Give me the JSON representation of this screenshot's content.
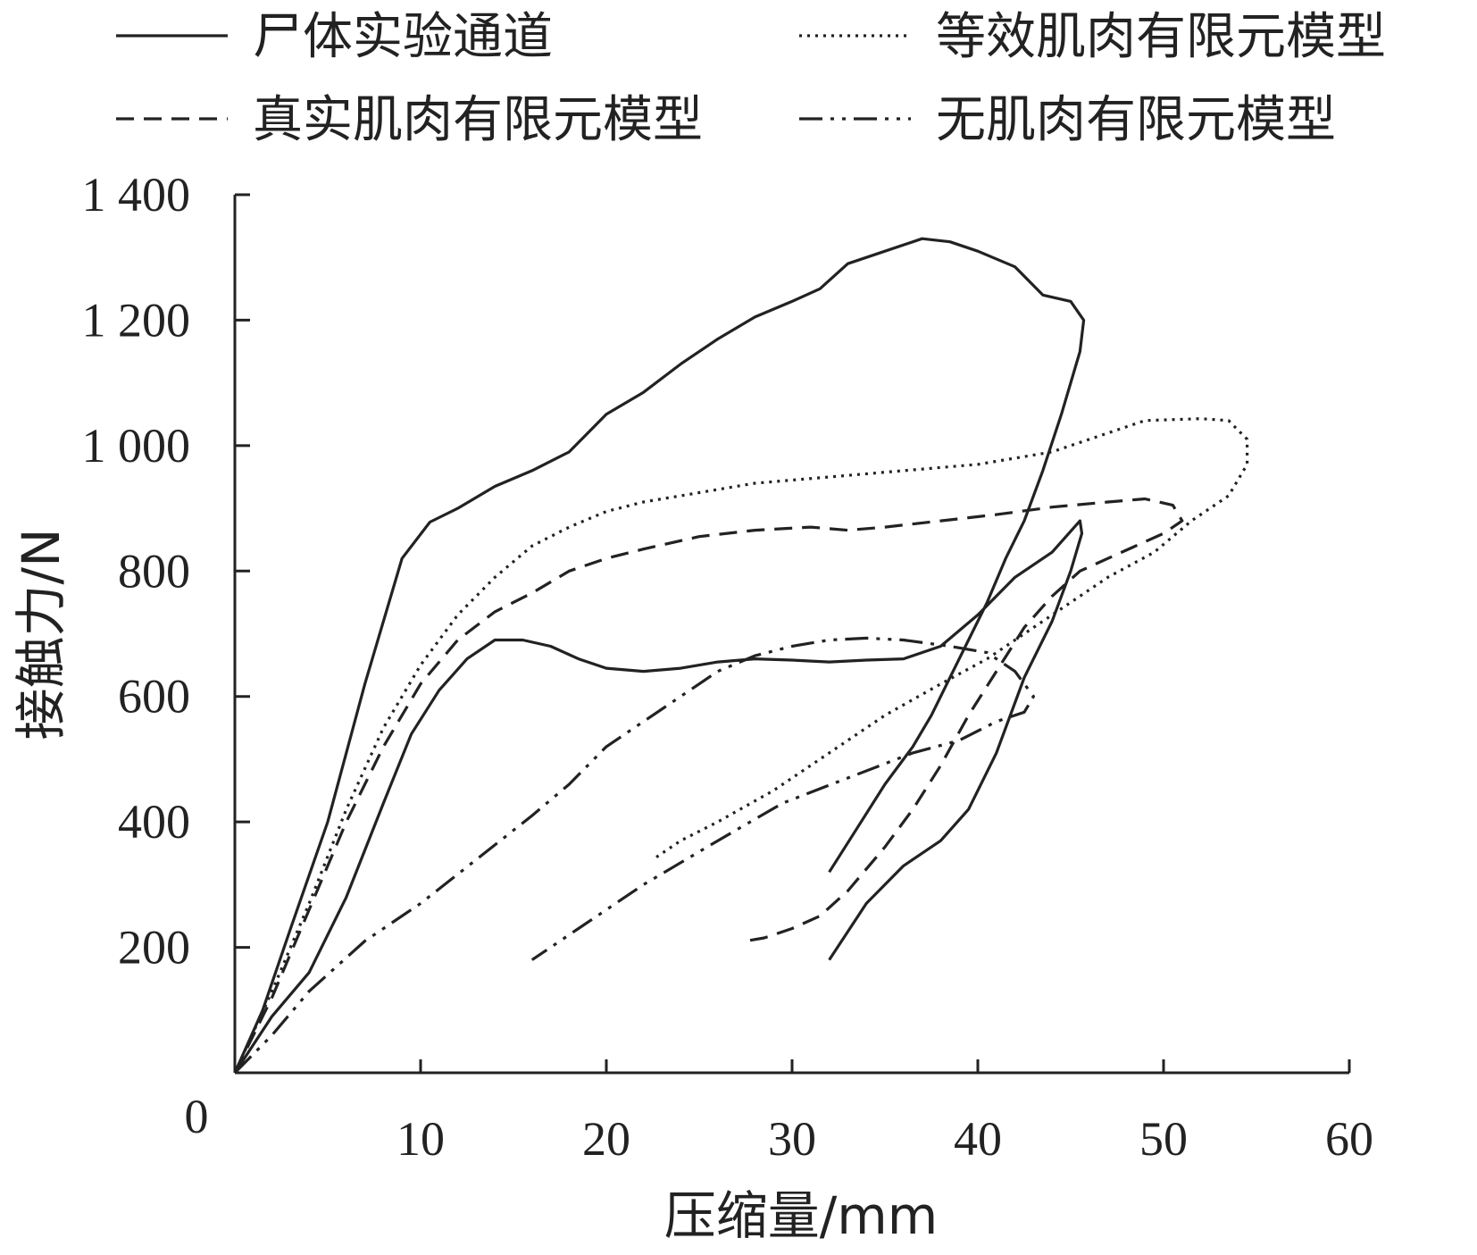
{
  "chart_data": {
    "type": "line",
    "title": "",
    "xlabel": "压缩量/mm",
    "ylabel": "接触力/N",
    "xlim": [
      0,
      60
    ],
    "ylim": [
      0,
      1400
    ],
    "x_ticks": [
      {
        "value": 0,
        "label": "0"
      },
      {
        "value": 10,
        "label": "10"
      },
      {
        "value": 20,
        "label": "20"
      },
      {
        "value": 30,
        "label": "30"
      },
      {
        "value": 40,
        "label": "40"
      },
      {
        "value": 50,
        "label": "50"
      },
      {
        "value": 60,
        "label": "60"
      }
    ],
    "y_ticks": [
      {
        "value": 200,
        "label": "200"
      },
      {
        "value": 400,
        "label": "400"
      },
      {
        "value": 600,
        "label": "600"
      },
      {
        "value": 800,
        "label": "800"
      },
      {
        "value": 1000,
        "label": "1 000"
      },
      {
        "value": 1200,
        "label": "1 200"
      },
      {
        "value": 1400,
        "label": "1 400"
      }
    ],
    "origin_label": "0",
    "legend_position": "top",
    "grid": false,
    "series": [
      {
        "name": "尸体实验通道",
        "dash": "solid",
        "points": [
          [
            0,
            0
          ],
          [
            1.5,
            100
          ],
          [
            3,
            230
          ],
          [
            5,
            400
          ],
          [
            7,
            620
          ],
          [
            9,
            820
          ],
          [
            10.5,
            878
          ],
          [
            12,
            900
          ],
          [
            14,
            935
          ],
          [
            16,
            960
          ],
          [
            18,
            990
          ],
          [
            20,
            1050
          ],
          [
            22,
            1085
          ],
          [
            24,
            1130
          ],
          [
            26,
            1170
          ],
          [
            28,
            1205
          ],
          [
            30,
            1230
          ],
          [
            31.5,
            1250
          ],
          [
            33,
            1290
          ],
          [
            35,
            1310
          ],
          [
            37,
            1330
          ],
          [
            38.5,
            1325
          ],
          [
            40,
            1310
          ],
          [
            42,
            1285
          ],
          [
            43.5,
            1240
          ],
          [
            45,
            1230
          ],
          [
            45.7,
            1200
          ],
          [
            45.5,
            1150
          ],
          [
            44.5,
            1050
          ],
          [
            43.5,
            960
          ],
          [
            42.5,
            880
          ],
          [
            41.5,
            820
          ],
          [
            40.5,
            750
          ],
          [
            39.5,
            690
          ],
          [
            38.5,
            630
          ],
          [
            37.5,
            570
          ],
          [
            36.5,
            520
          ],
          [
            35,
            460
          ],
          [
            33.5,
            390
          ],
          [
            32,
            320
          ],
          null,
          [
            0,
            0
          ],
          [
            2,
            90
          ],
          [
            4,
            160
          ],
          [
            6,
            280
          ],
          [
            8,
            430
          ],
          [
            9.5,
            540
          ],
          [
            11,
            610
          ],
          [
            12.5,
            660
          ],
          [
            14,
            690
          ],
          [
            15.5,
            690
          ],
          [
            17,
            680
          ],
          [
            18.5,
            660
          ],
          [
            20,
            645
          ],
          [
            22,
            640
          ],
          [
            24,
            645
          ],
          [
            26,
            655
          ],
          [
            28,
            660
          ],
          [
            30,
            658
          ],
          [
            32,
            655
          ],
          [
            34,
            658
          ],
          [
            36,
            660
          ],
          [
            38,
            680
          ],
          [
            40,
            730
          ],
          [
            42,
            790
          ],
          [
            44,
            830
          ],
          [
            45.5,
            880
          ],
          [
            45.6,
            860
          ],
          [
            45,
            800
          ],
          [
            44,
            720
          ],
          [
            42.5,
            630
          ],
          [
            41,
            510
          ],
          [
            39.5,
            420
          ],
          [
            38,
            370
          ],
          [
            36,
            330
          ],
          [
            34,
            270
          ],
          [
            32,
            180
          ]
        ]
      },
      {
        "name": "等效肌肉有限元模型",
        "dash": "dotted",
        "points": [
          [
            0,
            0
          ],
          [
            2,
            130
          ],
          [
            4,
            270
          ],
          [
            6,
            420
          ],
          [
            8,
            550
          ],
          [
            10,
            650
          ],
          [
            12,
            730
          ],
          [
            14,
            790
          ],
          [
            16,
            840
          ],
          [
            18,
            870
          ],
          [
            20,
            895
          ],
          [
            22,
            910
          ],
          [
            25,
            925
          ],
          [
            28,
            940
          ],
          [
            32,
            950
          ],
          [
            36,
            960
          ],
          [
            40,
            970
          ],
          [
            44,
            990
          ],
          [
            47,
            1020
          ],
          [
            49,
            1040
          ],
          [
            52,
            1043
          ],
          [
            53.5,
            1040
          ],
          [
            54.5,
            1010
          ],
          [
            54.5,
            970
          ],
          [
            53.5,
            920
          ],
          [
            51.5,
            880
          ],
          [
            49.5,
            830
          ],
          [
            47,
            790
          ],
          [
            45,
            750
          ],
          [
            43,
            710
          ],
          [
            40.5,
            660
          ],
          [
            38,
            620
          ],
          [
            35,
            570
          ],
          [
            32,
            510
          ],
          [
            29,
            450
          ],
          [
            26,
            400
          ],
          [
            24,
            370
          ],
          [
            22.5,
            340
          ]
        ]
      },
      {
        "name": "真实肌肉有限元模型",
        "dash": "dashed",
        "points": [
          [
            0,
            0
          ],
          [
            2,
            120
          ],
          [
            4,
            260
          ],
          [
            6,
            400
          ],
          [
            8,
            520
          ],
          [
            10,
            620
          ],
          [
            12,
            690
          ],
          [
            14,
            735
          ],
          [
            16,
            765
          ],
          [
            18,
            800
          ],
          [
            20,
            820
          ],
          [
            22,
            835
          ],
          [
            25,
            855
          ],
          [
            28,
            865
          ],
          [
            31,
            870
          ],
          [
            33,
            865
          ],
          [
            35,
            870
          ],
          [
            38,
            880
          ],
          [
            41,
            890
          ],
          [
            44,
            902
          ],
          [
            47,
            910
          ],
          [
            49,
            915
          ],
          [
            50.5,
            905
          ],
          [
            51,
            880
          ],
          [
            50,
            860
          ],
          [
            48.5,
            840
          ],
          [
            47,
            820
          ],
          [
            45.5,
            800
          ],
          [
            44,
            760
          ],
          [
            42.5,
            710
          ],
          [
            41,
            640
          ],
          [
            39.5,
            570
          ],
          [
            38,
            490
          ],
          [
            36.5,
            420
          ],
          [
            35,
            360
          ],
          [
            33,
            290
          ],
          [
            31.5,
            250
          ],
          [
            30,
            230
          ],
          [
            28.5,
            215
          ],
          [
            27.5,
            210
          ]
        ]
      },
      {
        "name": "无肌肉有限元模型",
        "dash": "dashdotdot",
        "points": [
          [
            0,
            0
          ],
          [
            2,
            60
          ],
          [
            4,
            130
          ],
          [
            7,
            210
          ],
          [
            10,
            270
          ],
          [
            13,
            340
          ],
          [
            16,
            410
          ],
          [
            18,
            460
          ],
          [
            20,
            520
          ],
          [
            22,
            560
          ],
          [
            24,
            600
          ],
          [
            26,
            640
          ],
          [
            28,
            665
          ],
          [
            30,
            680
          ],
          [
            32,
            690
          ],
          [
            34,
            693
          ],
          [
            36,
            690
          ],
          [
            38.5,
            680
          ],
          [
            40.5,
            670
          ],
          [
            42,
            640
          ],
          [
            43,
            600
          ],
          [
            42.5,
            575
          ],
          [
            41,
            560
          ],
          [
            39,
            530
          ],
          [
            36.5,
            510
          ],
          [
            33,
            470
          ],
          [
            29.5,
            430
          ],
          [
            26,
            370
          ],
          [
            22,
            300
          ],
          [
            18.5,
            230
          ],
          [
            16,
            180
          ]
        ]
      }
    ]
  }
}
